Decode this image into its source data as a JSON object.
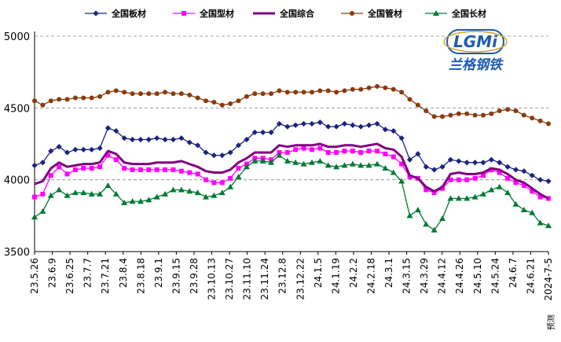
{
  "chart_data": {
    "type": "line",
    "title": "",
    "xlabel": "",
    "ylabel": "",
    "ylim": [
      3500,
      5000
    ],
    "yticks": [
      3500,
      4000,
      4500,
      5000
    ],
    "grid": "horizontal dashed",
    "legend_position": "top",
    "tick_labels": [
      "23.5.26",
      "23.6.9",
      "23.6.25",
      "23.7.7",
      "23.7.21",
      "23.8.4",
      "23.8.18",
      "23.9.1",
      "23.9.15",
      "23.9.28",
      "23.10.13",
      "23.10.27",
      "23.11.10",
      "23.11.24",
      "23.12.8",
      "23.12.22",
      "24.1.5",
      "24.1.19",
      "24.2.2",
      "24.2.18",
      "24.3.1",
      "24.3.15",
      "24.3.29",
      "24.4.12",
      "24.4.26",
      "24.5.10",
      "24.5.24",
      "24.6.7",
      "24.6.21",
      "2024-7-5"
    ],
    "forecast_label": "预测",
    "logo": {
      "mark": "LGMi",
      "name": "兰格钢铁"
    },
    "series": [
      {
        "name": "全国板材",
        "color": "#1a237e",
        "marker": "diamond",
        "values": [
          4100,
          4120,
          4200,
          4230,
          4190,
          4210,
          4210,
          4210,
          4220,
          4360,
          4340,
          4290,
          4280,
          4280,
          4280,
          4290,
          4280,
          4280,
          4290,
          4260,
          4240,
          4190,
          4170,
          4170,
          4190,
          4240,
          4280,
          4330,
          4330,
          4330,
          4390,
          4370,
          4380,
          4390,
          4390,
          4400,
          4370,
          4370,
          4390,
          4380,
          4370,
          4380,
          4390,
          4350,
          4340,
          4290,
          4140,
          4180,
          4090,
          4070,
          4090,
          4140,
          4130,
          4120,
          4120,
          4120,
          4140,
          4120,
          4090,
          4070,
          4060,
          4030,
          4000,
          3990
        ]
      },
      {
        "name": "全国型材",
        "color": "#ff00ff",
        "marker": "square",
        "values": [
          3880,
          3900,
          4030,
          4090,
          4040,
          4070,
          4080,
          4080,
          4090,
          4170,
          4140,
          4080,
          4070,
          4070,
          4070,
          4070,
          4070,
          4070,
          4060,
          4050,
          4040,
          4000,
          3980,
          3980,
          4010,
          4080,
          4110,
          4150,
          4150,
          4140,
          4190,
          4190,
          4210,
          4220,
          4210,
          4220,
          4190,
          4190,
          4200,
          4200,
          4190,
          4200,
          4200,
          4180,
          4160,
          4110,
          4020,
          4010,
          3930,
          3910,
          3940,
          4000,
          4000,
          4000,
          4010,
          4030,
          4070,
          4050,
          4010,
          3980,
          3960,
          3920,
          3880,
          3870
        ]
      },
      {
        "name": "全国综合",
        "color": "#800080",
        "marker": "none",
        "values": [
          3970,
          3990,
          4080,
          4120,
          4090,
          4100,
          4110,
          4110,
          4120,
          4200,
          4180,
          4120,
          4110,
          4110,
          4110,
          4120,
          4120,
          4120,
          4130,
          4110,
          4090,
          4060,
          4050,
          4050,
          4070,
          4120,
          4150,
          4190,
          4190,
          4190,
          4240,
          4230,
          4240,
          4240,
          4240,
          4250,
          4230,
          4230,
          4240,
          4240,
          4230,
          4240,
          4250,
          4220,
          4210,
          4160,
          4030,
          4010,
          3950,
          3920,
          3950,
          4040,
          4050,
          4040,
          4040,
          4050,
          4080,
          4070,
          4040,
          4000,
          3980,
          3940,
          3900,
          3870
        ]
      },
      {
        "name": "全国管材",
        "color": "#8b3a0e",
        "marker": "circle",
        "values": [
          4550,
          4520,
          4550,
          4560,
          4560,
          4570,
          4570,
          4570,
          4580,
          4610,
          4620,
          4610,
          4600,
          4600,
          4600,
          4600,
          4610,
          4600,
          4600,
          4590,
          4570,
          4550,
          4540,
          4520,
          4530,
          4550,
          4580,
          4600,
          4600,
          4600,
          4620,
          4610,
          4610,
          4610,
          4610,
          4620,
          4620,
          4610,
          4620,
          4630,
          4630,
          4640,
          4650,
          4640,
          4630,
          4610,
          4560,
          4520,
          4480,
          4440,
          4440,
          4450,
          4460,
          4460,
          4450,
          4450,
          4460,
          4480,
          4490,
          4480,
          4450,
          4430,
          4410,
          4390
        ]
      },
      {
        "name": "全国长材",
        "color": "#007a33",
        "marker": "triangle",
        "values": [
          3740,
          3780,
          3890,
          3930,
          3890,
          3910,
          3910,
          3900,
          3900,
          3960,
          3900,
          3840,
          3850,
          3850,
          3860,
          3880,
          3900,
          3930,
          3930,
          3920,
          3910,
          3880,
          3890,
          3910,
          3950,
          4020,
          4090,
          4130,
          4130,
          4120,
          4170,
          4130,
          4120,
          4110,
          4120,
          4130,
          4100,
          4090,
          4100,
          4110,
          4100,
          4100,
          4110,
          4080,
          4050,
          3990,
          3750,
          3790,
          3690,
          3650,
          3730,
          3870,
          3870,
          3870,
          3880,
          3900,
          3930,
          3950,
          3910,
          3830,
          3790,
          3770,
          3700,
          3680
        ]
      }
    ]
  }
}
